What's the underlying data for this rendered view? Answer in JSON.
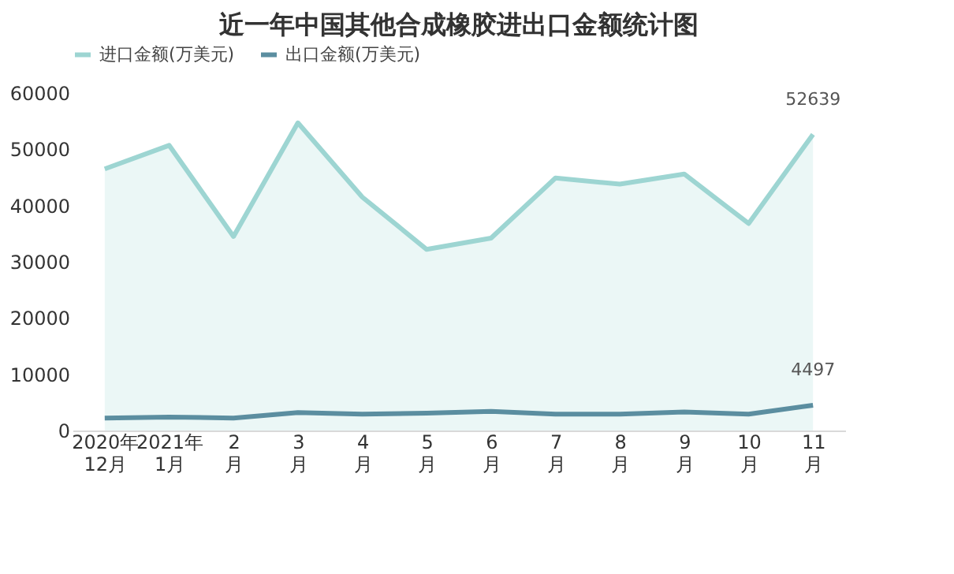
{
  "chart_data": {
    "type": "line",
    "title": "近一年中国其他合成橡胶进出口金额统计图",
    "categories": [
      "2020年\n12月",
      "2021年\n1月",
      "2\n月",
      "3\n月",
      "4\n月",
      "5\n月",
      "6\n月",
      "7\n月",
      "8\n月",
      "9\n月",
      "10\n月",
      "11\n月"
    ],
    "series": [
      {
        "name": "进口金额(万美元)",
        "type": "area",
        "color": "#9dd5d2",
        "values": [
          46500,
          50700,
          34500,
          54700,
          41500,
          32200,
          34200,
          44900,
          43800,
          45600,
          36800,
          52639
        ],
        "value_labels": [
          null,
          null,
          null,
          null,
          null,
          null,
          null,
          null,
          null,
          null,
          null,
          "52639"
        ]
      },
      {
        "name": "出口金额(万美元)",
        "type": "line",
        "color": "#5b8ea0",
        "values": [
          2200,
          2400,
          2200,
          3200,
          2900,
          3100,
          3400,
          2900,
          2900,
          3300,
          2900,
          4497
        ],
        "value_labels": [
          null,
          null,
          null,
          null,
          null,
          null,
          null,
          null,
          null,
          null,
          null,
          "4497"
        ]
      }
    ],
    "ylim": [
      0,
      60000
    ],
    "yticks": [
      0,
      10000,
      20000,
      30000,
      40000,
      50000,
      60000
    ],
    "grid": false,
    "legend": "top"
  }
}
